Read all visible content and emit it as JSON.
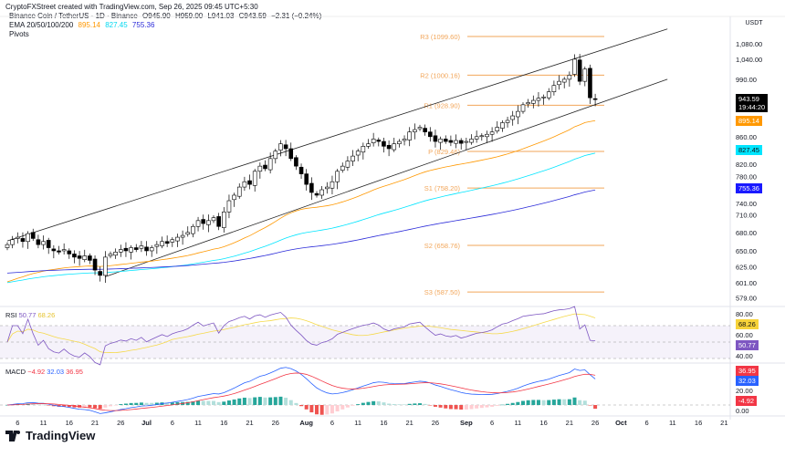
{
  "header": {
    "credit": "CryptoFXStreet created with TradingView.com, Sep 26, 2025 09:45 UTC+5:30"
  },
  "legend": {
    "symbol": "Binance Coin / TetherUS · 1D · Binance",
    "open": "O945.90",
    "high": "H959.00",
    "low": "L941.03",
    "close": "C943.59",
    "change": "−2.31 (−0.24%)",
    "ema_label": "EMA 20/50/100/200",
    "ema_values": [
      "895.14",
      "827.45",
      "755.36"
    ],
    "pivots_label": "Pivots"
  },
  "axis": {
    "currency": "USDT",
    "price_ticks": [
      "1,080.00",
      "1,040.00",
      "990.00",
      "860.00",
      "820.00",
      "780.00",
      "740.00",
      "710.00",
      "680.00",
      "650.00",
      "625.00",
      "601.00",
      "579.00"
    ],
    "price_tick_values": [
      1080,
      1040,
      990,
      860,
      820,
      780,
      740,
      710,
      680,
      650,
      625,
      601,
      579
    ],
    "last_price": "943.59",
    "countdown": "19:44:20",
    "ema_tags": [
      "895.14",
      "827.45",
      "755.36"
    ],
    "rsi_ticks": [
      "80.00",
      "60.00",
      "40.00"
    ],
    "rsi_tags": [
      "68.26",
      "50.77"
    ],
    "macd_ticks": [
      "20.00",
      "0.00"
    ],
    "macd_tags": [
      "36.95",
      "32.03",
      "-4.92"
    ]
  },
  "colors": {
    "ema50": "#ff9800",
    "ema100": "#00e5ff",
    "ema200": "#2b2bd9",
    "pivot": "#f2a65a",
    "up": "#ffffff",
    "down": "#000000",
    "rsi": "#7e57c2",
    "rsi_ma": "#f5d94a",
    "macd": "#2962ff",
    "signal": "#f23645",
    "hist_up": "#26a69a",
    "hist_down": "#ef5350"
  },
  "pivots": [
    {
      "label": "R3 (1099.60)",
      "value": 1099.6
    },
    {
      "label": "R2 (1000.16)",
      "value": 1000.16
    },
    {
      "label": "R1 (928.90)",
      "value": 928.9
    },
    {
      "label": "P (829.46)",
      "value": 829.46
    },
    {
      "label": "S1 (758.20)",
      "value": 758.2
    },
    {
      "label": "S2 (658.76)",
      "value": 658.76
    },
    {
      "label": "S3 (587.50)",
      "value": 587.5
    }
  ],
  "rsi": {
    "label": "RSI",
    "value": "50.77",
    "ma": "68.26"
  },
  "macd": {
    "label": "MACD",
    "hist": "−4.92",
    "macd": "32.03",
    "signal": "36.95"
  },
  "x_ticks": [
    {
      "label": "6",
      "day": 2
    },
    {
      "label": "11",
      "day": 7
    },
    {
      "label": "16",
      "day": 12
    },
    {
      "label": "21",
      "day": 17
    },
    {
      "label": "26",
      "day": 22
    },
    {
      "label": "Jul",
      "day": 27
    },
    {
      "label": "6",
      "day": 32
    },
    {
      "label": "11",
      "day": 37
    },
    {
      "label": "16",
      "day": 42
    },
    {
      "label": "21",
      "day": 47
    },
    {
      "label": "26",
      "day": 52
    },
    {
      "label": "Aug",
      "day": 58
    },
    {
      "label": "6",
      "day": 63
    },
    {
      "label": "11",
      "day": 68
    },
    {
      "label": "16",
      "day": 73
    },
    {
      "label": "21",
      "day": 78
    },
    {
      "label": "26",
      "day": 83
    },
    {
      "label": "Sep",
      "day": 89
    },
    {
      "label": "6",
      "day": 94
    },
    {
      "label": "11",
      "day": 99
    },
    {
      "label": "16",
      "day": 104
    },
    {
      "label": "21",
      "day": 109
    },
    {
      "label": "26",
      "day": 114
    },
    {
      "label": "Oct",
      "day": 119
    },
    {
      "label": "6",
      "day": 124
    },
    {
      "label": "11",
      "day": 129
    },
    {
      "label": "16",
      "day": 134
    },
    {
      "label": "21",
      "day": 139
    }
  ],
  "chart_data": {
    "type": "candlestick",
    "start_date": "Jun 4",
    "closes": [
      660,
      668,
      672,
      665,
      678,
      670,
      660,
      665,
      655,
      650,
      648,
      652,
      645,
      640,
      638,
      642,
      635,
      620,
      612,
      640,
      645,
      648,
      652,
      650,
      655,
      652,
      658,
      650,
      655,
      660,
      665,
      662,
      668,
      672,
      675,
      680,
      690,
      700,
      695,
      700,
      705,
      690,
      715,
      735,
      745,
      760,
      770,
      765,
      790,
      800,
      795,
      815,
      830,
      845,
      835,
      815,
      800,
      785,
      765,
      750,
      745,
      755,
      760,
      770,
      790,
      800,
      810,
      820,
      830,
      840,
      845,
      855,
      850,
      840,
      835,
      845,
      850,
      855,
      870,
      875,
      880,
      870,
      860,
      850,
      855,
      850,
      848,
      852,
      846,
      850,
      855,
      860,
      862,
      865,
      870,
      880,
      890,
      895,
      905,
      915,
      930,
      935,
      940,
      945,
      948,
      960,
      975,
      985,
      990,
      1000,
      1040,
      985,
      1015,
      946,
      943.59
    ],
    "channel": {
      "upper": [
        {
          "day": 0,
          "price": 666
        },
        {
          "day": 128,
          "price": 1120
        }
      ],
      "lower": [
        {
          "day": 19,
          "price": 610
        },
        {
          "day": 128,
          "price": 990
        }
      ]
    },
    "brand": "TradingView"
  }
}
